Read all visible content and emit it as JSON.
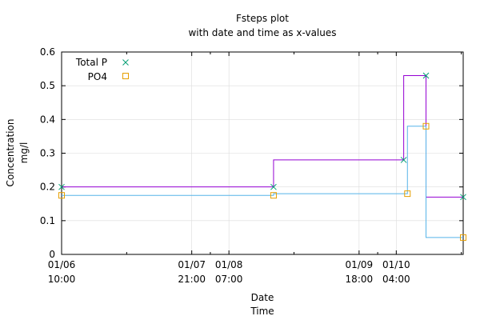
{
  "chart_data": {
    "type": "line",
    "title": "Fsteps plot",
    "subtitle": "with date and time as x-values",
    "xlabel": [
      "Date",
      "Time"
    ],
    "ylabel": [
      "Concentration",
      "mg/l"
    ],
    "x_range": [
      "01/06 10:00",
      "01/10 22:00"
    ],
    "ylim": [
      0,
      0.6
    ],
    "y_ticks": [
      "0",
      "0.1",
      "0.2",
      "0.3",
      "0.4",
      "0.5",
      "0.6"
    ],
    "x_ticks": [
      {
        "x": "01/06 10:00",
        "date": "01/06",
        "time": "10:00"
      },
      {
        "x": "01/07 21:00",
        "date": "01/07",
        "time": "21:00"
      },
      {
        "x": "01/08 07:00",
        "date": "01/08",
        "time": "07:00"
      },
      {
        "x": "01/09 18:00",
        "date": "01/09",
        "time": "18:00"
      },
      {
        "x": "01/10 04:00",
        "date": "01/10",
        "time": "04:00"
      }
    ],
    "grid": true,
    "step_style": "fsteps",
    "legend_position": "top-left",
    "series": [
      {
        "name": "Total P",
        "color": "#9400d3",
        "marker": "x",
        "marker_color": "#009e73",
        "points": [
          {
            "x": "01/06 10:00",
            "y": 0.2
          },
          {
            "x": "01/08 19:00",
            "y": 0.2
          },
          {
            "x": "01/10 06:00",
            "y": 0.28
          },
          {
            "x": "01/10 12:00",
            "y": 0.53
          },
          {
            "x": "01/10 22:00",
            "y": 0.17
          }
        ]
      },
      {
        "name": "PO4",
        "color": "#56b4e9",
        "marker": "square",
        "marker_color": "#e69f00",
        "points": [
          {
            "x": "01/06 10:00",
            "y": 0.175
          },
          {
            "x": "01/08 19:00",
            "y": 0.175
          },
          {
            "x": "01/10 07:00",
            "y": 0.18
          },
          {
            "x": "01/10 12:00",
            "y": 0.38
          },
          {
            "x": "01/10 22:00",
            "y": 0.05
          }
        ]
      }
    ]
  }
}
